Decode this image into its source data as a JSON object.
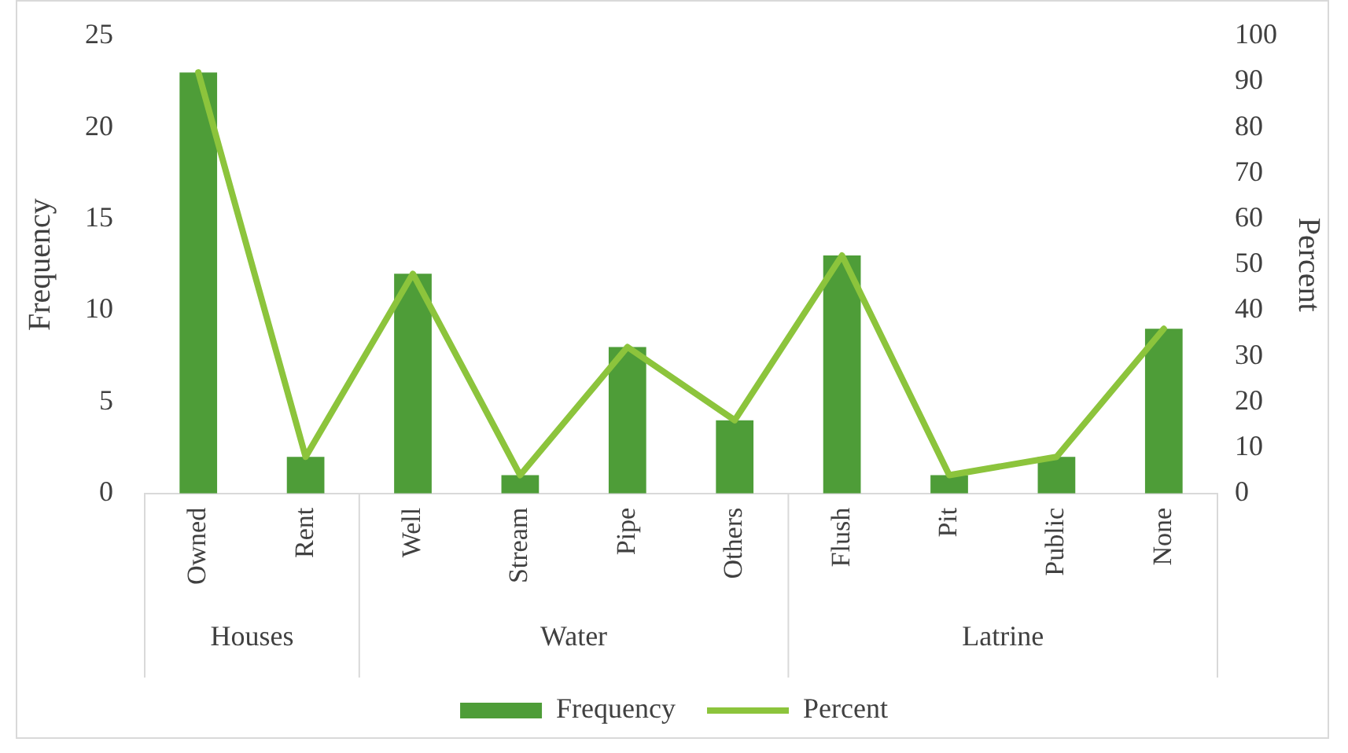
{
  "chart_data": {
    "type": "bar",
    "categories": [
      "Owned",
      "Rent",
      "Well",
      "Stream",
      "Pipe",
      "Others",
      "Flush",
      "Pit",
      "Public",
      "None"
    ],
    "ylabel": "Frequency",
    "y2label": "Percent",
    "ylim": [
      0,
      25
    ],
    "yticks": [
      0,
      5,
      10,
      15,
      20,
      25
    ],
    "y2lim": [
      0,
      100
    ],
    "y2ticks": [
      0,
      10,
      20,
      30,
      40,
      50,
      60,
      70,
      80,
      90,
      100
    ],
    "series": [
      {
        "name": "Frequency",
        "color": "#4e9d38",
        "values": [
          23,
          2,
          12,
          1,
          8,
          4,
          13,
          1,
          2,
          9
        ]
      },
      {
        "name": "Percent",
        "type": "line",
        "axis": "y2",
        "color": "#8cc43c",
        "values": [
          92,
          8,
          48,
          4,
          32,
          16,
          52,
          4,
          8,
          36
        ]
      }
    ],
    "annotations": [
      "Houses",
      "Water",
      "Latrine"
    ],
    "legend": "bottom",
    "marker": "none",
    "grid": false
  }
}
